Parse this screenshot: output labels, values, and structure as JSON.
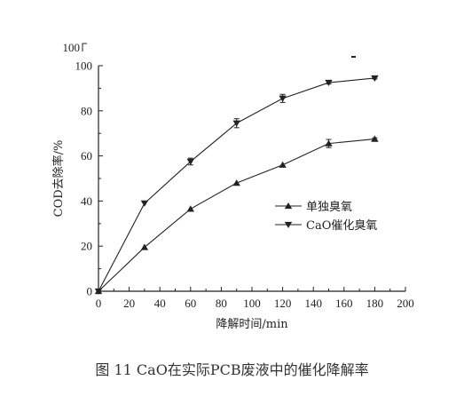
{
  "caption": "图 11   CaO在实际PCB废液中的催化降解率",
  "chart_data": {
    "type": "line",
    "xlabel": "降解时间/min",
    "ylabel": "COD去除率/%",
    "xlim": [
      0,
      200
    ],
    "ylim": [
      0,
      100
    ],
    "xticks": [
      "0",
      "20",
      "40",
      "60",
      "80",
      "100",
      "120",
      "140",
      "160",
      "180",
      "200"
    ],
    "yticks": [
      "0",
      "20",
      "40",
      "60",
      "80",
      "100"
    ],
    "grid": false,
    "legend_position": "center-right",
    "x": [
      0,
      30,
      60,
      90,
      120,
      150,
      180
    ],
    "series": [
      {
        "name": "单独臭氧",
        "marker": "triangle-up",
        "values": [
          0,
          19.5,
          36.5,
          48,
          56,
          65.5,
          67.5
        ],
        "errors": [
          0,
          0,
          0,
          0,
          0,
          1.8,
          0.5
        ]
      },
      {
        "name": "CaO催化臭氧",
        "marker": "triangle-down",
        "values": [
          0,
          39,
          57.5,
          74.5,
          85.5,
          92.5,
          94.5
        ],
        "errors": [
          0,
          0,
          1.5,
          2,
          1.8,
          0.6,
          0.4
        ]
      }
    ],
    "annotations": {
      "top_label": "100"
    },
    "color": "#222222"
  }
}
